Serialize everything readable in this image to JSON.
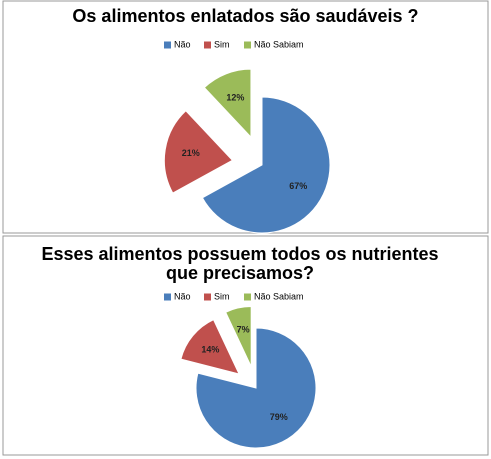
{
  "chart_data": [
    {
      "type": "pie",
      "title": "Os alimentos enlatados são saudáveis ?",
      "categories": [
        "Não",
        "Sim",
        "Não Sabiam"
      ],
      "values": [
        67,
        21,
        12
      ],
      "value_labels": [
        "67%",
        "21%",
        "12%"
      ],
      "colors": [
        "#4a7ebb",
        "#c0504d",
        "#9bbb59"
      ]
    },
    {
      "type": "pie",
      "title": "Esses alimentos possuem todos os nutrientes que precisamos?",
      "categories": [
        "Não",
        "Sim",
        "Não Sabiam"
      ],
      "values": [
        79,
        14,
        7
      ],
      "value_labels": [
        "79%",
        "14%",
        "7%"
      ],
      "colors": [
        "#4a7ebb",
        "#c0504d",
        "#9bbb59"
      ]
    }
  ]
}
